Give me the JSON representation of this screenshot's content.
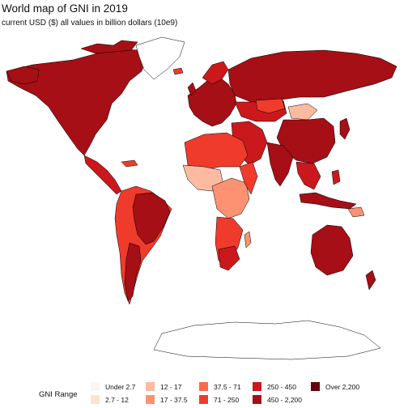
{
  "title": "World map of GNI in 2019",
  "subtitle": "current USD ($) all values in billion dollars (10e9)",
  "legend": {
    "title": "GNI Range",
    "items": [
      {
        "label": "Under 2.7",
        "color": "#fff5f0"
      },
      {
        "label": "2.7 - 12",
        "color": "#fee2d2"
      },
      {
        "label": "12 - 17",
        "color": "#fcbba1"
      },
      {
        "label": "17 - 37.5",
        "color": "#fc9272"
      },
      {
        "label": "37.5 - 71",
        "color": "#fb6a4a"
      },
      {
        "label": "71 - 250",
        "color": "#ef3b2c"
      },
      {
        "label": "250 - 450",
        "color": "#cb181d"
      },
      {
        "label": "450 - 2,200",
        "color": "#a50f15"
      },
      {
        "label": "Over 2,200",
        "color": "#67000d"
      }
    ]
  },
  "colors": {
    "dark": "#a50f15",
    "mid": "#cb181d",
    "orange": "#ef3b2c",
    "light": "#fc9272",
    "pale": "#fcbba1",
    "white": "#ffffff"
  }
}
